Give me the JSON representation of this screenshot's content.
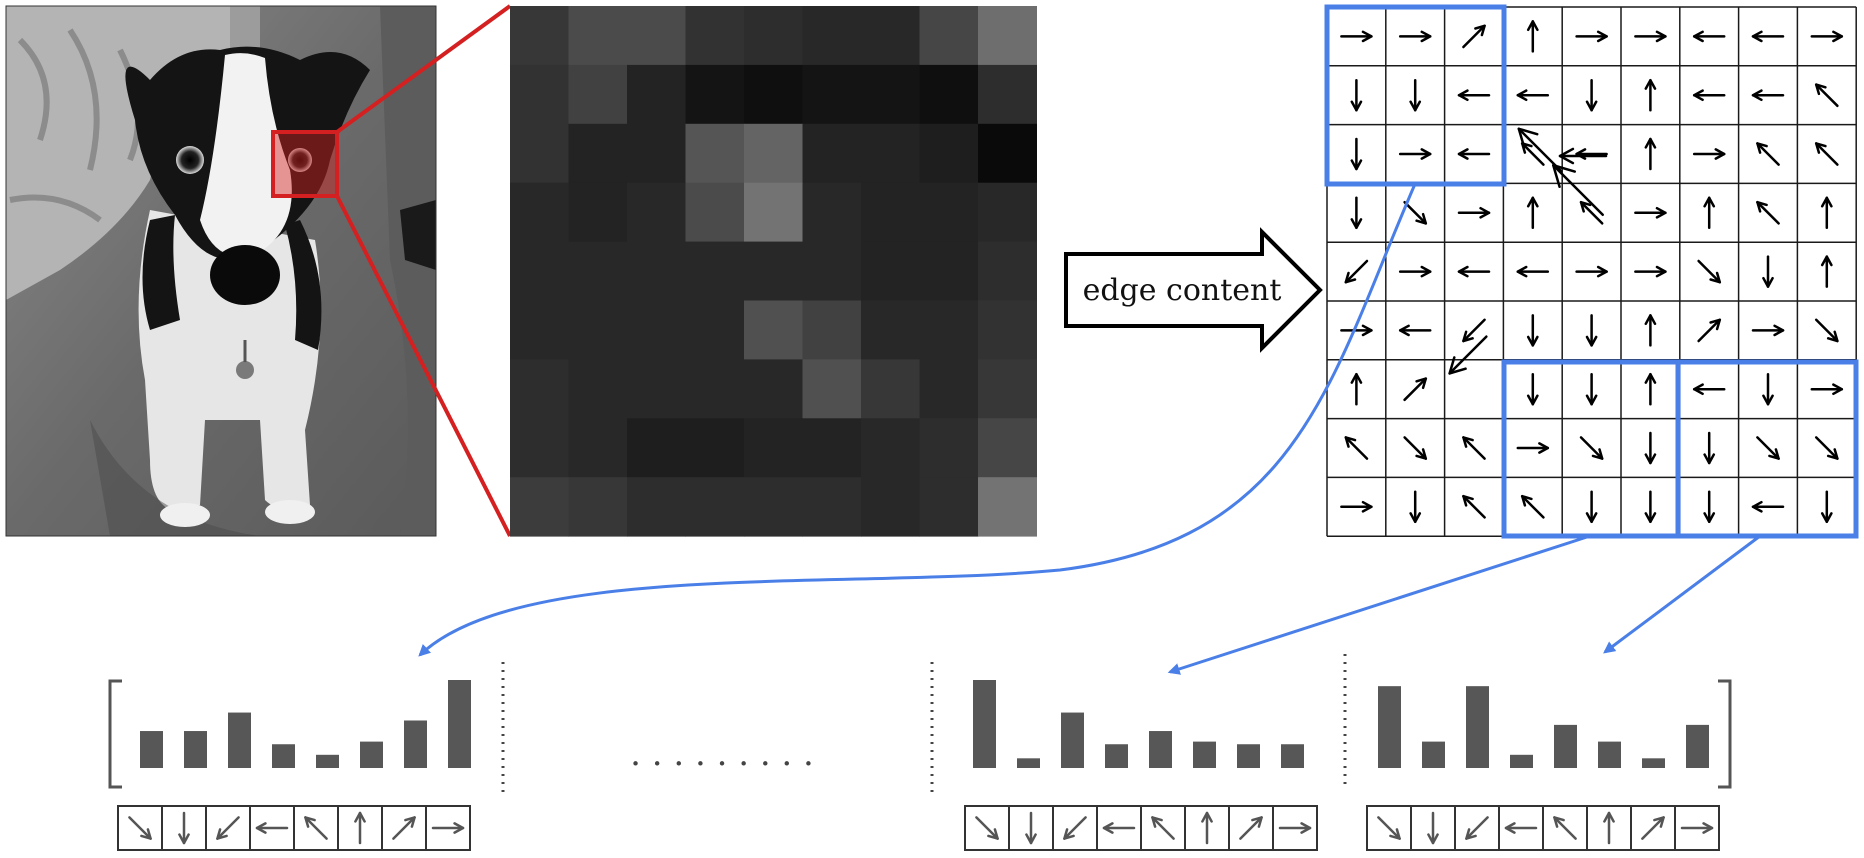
{
  "label": "edge content",
  "colors": {
    "highlight": "#d42020",
    "blue": "#4a7fe8",
    "bar": "#575757",
    "grid": "#1a1a1a"
  },
  "pixels": [
    [
      55,
      75,
      75,
      50,
      45,
      40,
      40,
      70,
      110
    ],
    [
      50,
      65,
      35,
      20,
      15,
      20,
      20,
      15,
      45
    ],
    [
      50,
      35,
      35,
      85,
      100,
      35,
      35,
      30,
      10
    ],
    [
      40,
      35,
      40,
      75,
      115,
      40,
      35,
      35,
      40
    ],
    [
      40,
      40,
      40,
      40,
      40,
      40,
      35,
      35,
      45
    ],
    [
      40,
      40,
      40,
      40,
      80,
      65,
      40,
      40,
      50
    ],
    [
      45,
      40,
      40,
      40,
      40,
      80,
      55,
      40,
      55
    ],
    [
      45,
      40,
      30,
      30,
      35,
      35,
      40,
      45,
      70
    ],
    [
      60,
      55,
      45,
      45,
      45,
      45,
      40,
      45,
      115
    ]
  ],
  "gradient_arrows": [
    [
      "E",
      "E",
      "NE",
      "N",
      "E",
      "E",
      "W",
      "W",
      "E"
    ],
    [
      "S",
      "S",
      "W",
      "W",
      "S",
      "N",
      "W",
      "W",
      "NW"
    ],
    [
      "S",
      "E",
      "W",
      "NW",
      "W",
      "N",
      "E",
      "NW",
      "NW"
    ],
    [
      "S",
      "SE",
      "E",
      "N",
      "NW",
      "E",
      "N",
      "NW",
      "N"
    ],
    [
      "SW",
      "E",
      "W",
      "W",
      "E",
      "E",
      "SE",
      "S",
      "N"
    ],
    [
      "E",
      "W",
      "SW",
      "S",
      "S",
      "N",
      "NE",
      "E",
      "SE"
    ],
    [
      "N",
      "NE",
      "",
      "S",
      "S",
      "N",
      "W",
      "S",
      "E"
    ],
    [
      "NW",
      "SE",
      "NW",
      "E",
      "SE",
      "S",
      "S",
      "SE",
      "SE"
    ],
    [
      "E",
      "S",
      "NW",
      "NW",
      "S",
      "S",
      "S",
      "W",
      "S"
    ]
  ],
  "ellipsis": ". . . . . . . . .",
  "bin_directions": [
    "SE",
    "S",
    "SW",
    "W",
    "NW",
    "N",
    "NE",
    "E"
  ],
  "histograms": [
    [
      0.42,
      0.42,
      0.63,
      0.27,
      0.15,
      0.3,
      0.54,
      1.0
    ],
    [
      1.0,
      0.11,
      0.63,
      0.27,
      0.42,
      0.3,
      0.27,
      0.27
    ],
    [
      0.93,
      0.3,
      0.93,
      0.15,
      0.49,
      0.3,
      0.11,
      0.49
    ]
  ]
}
